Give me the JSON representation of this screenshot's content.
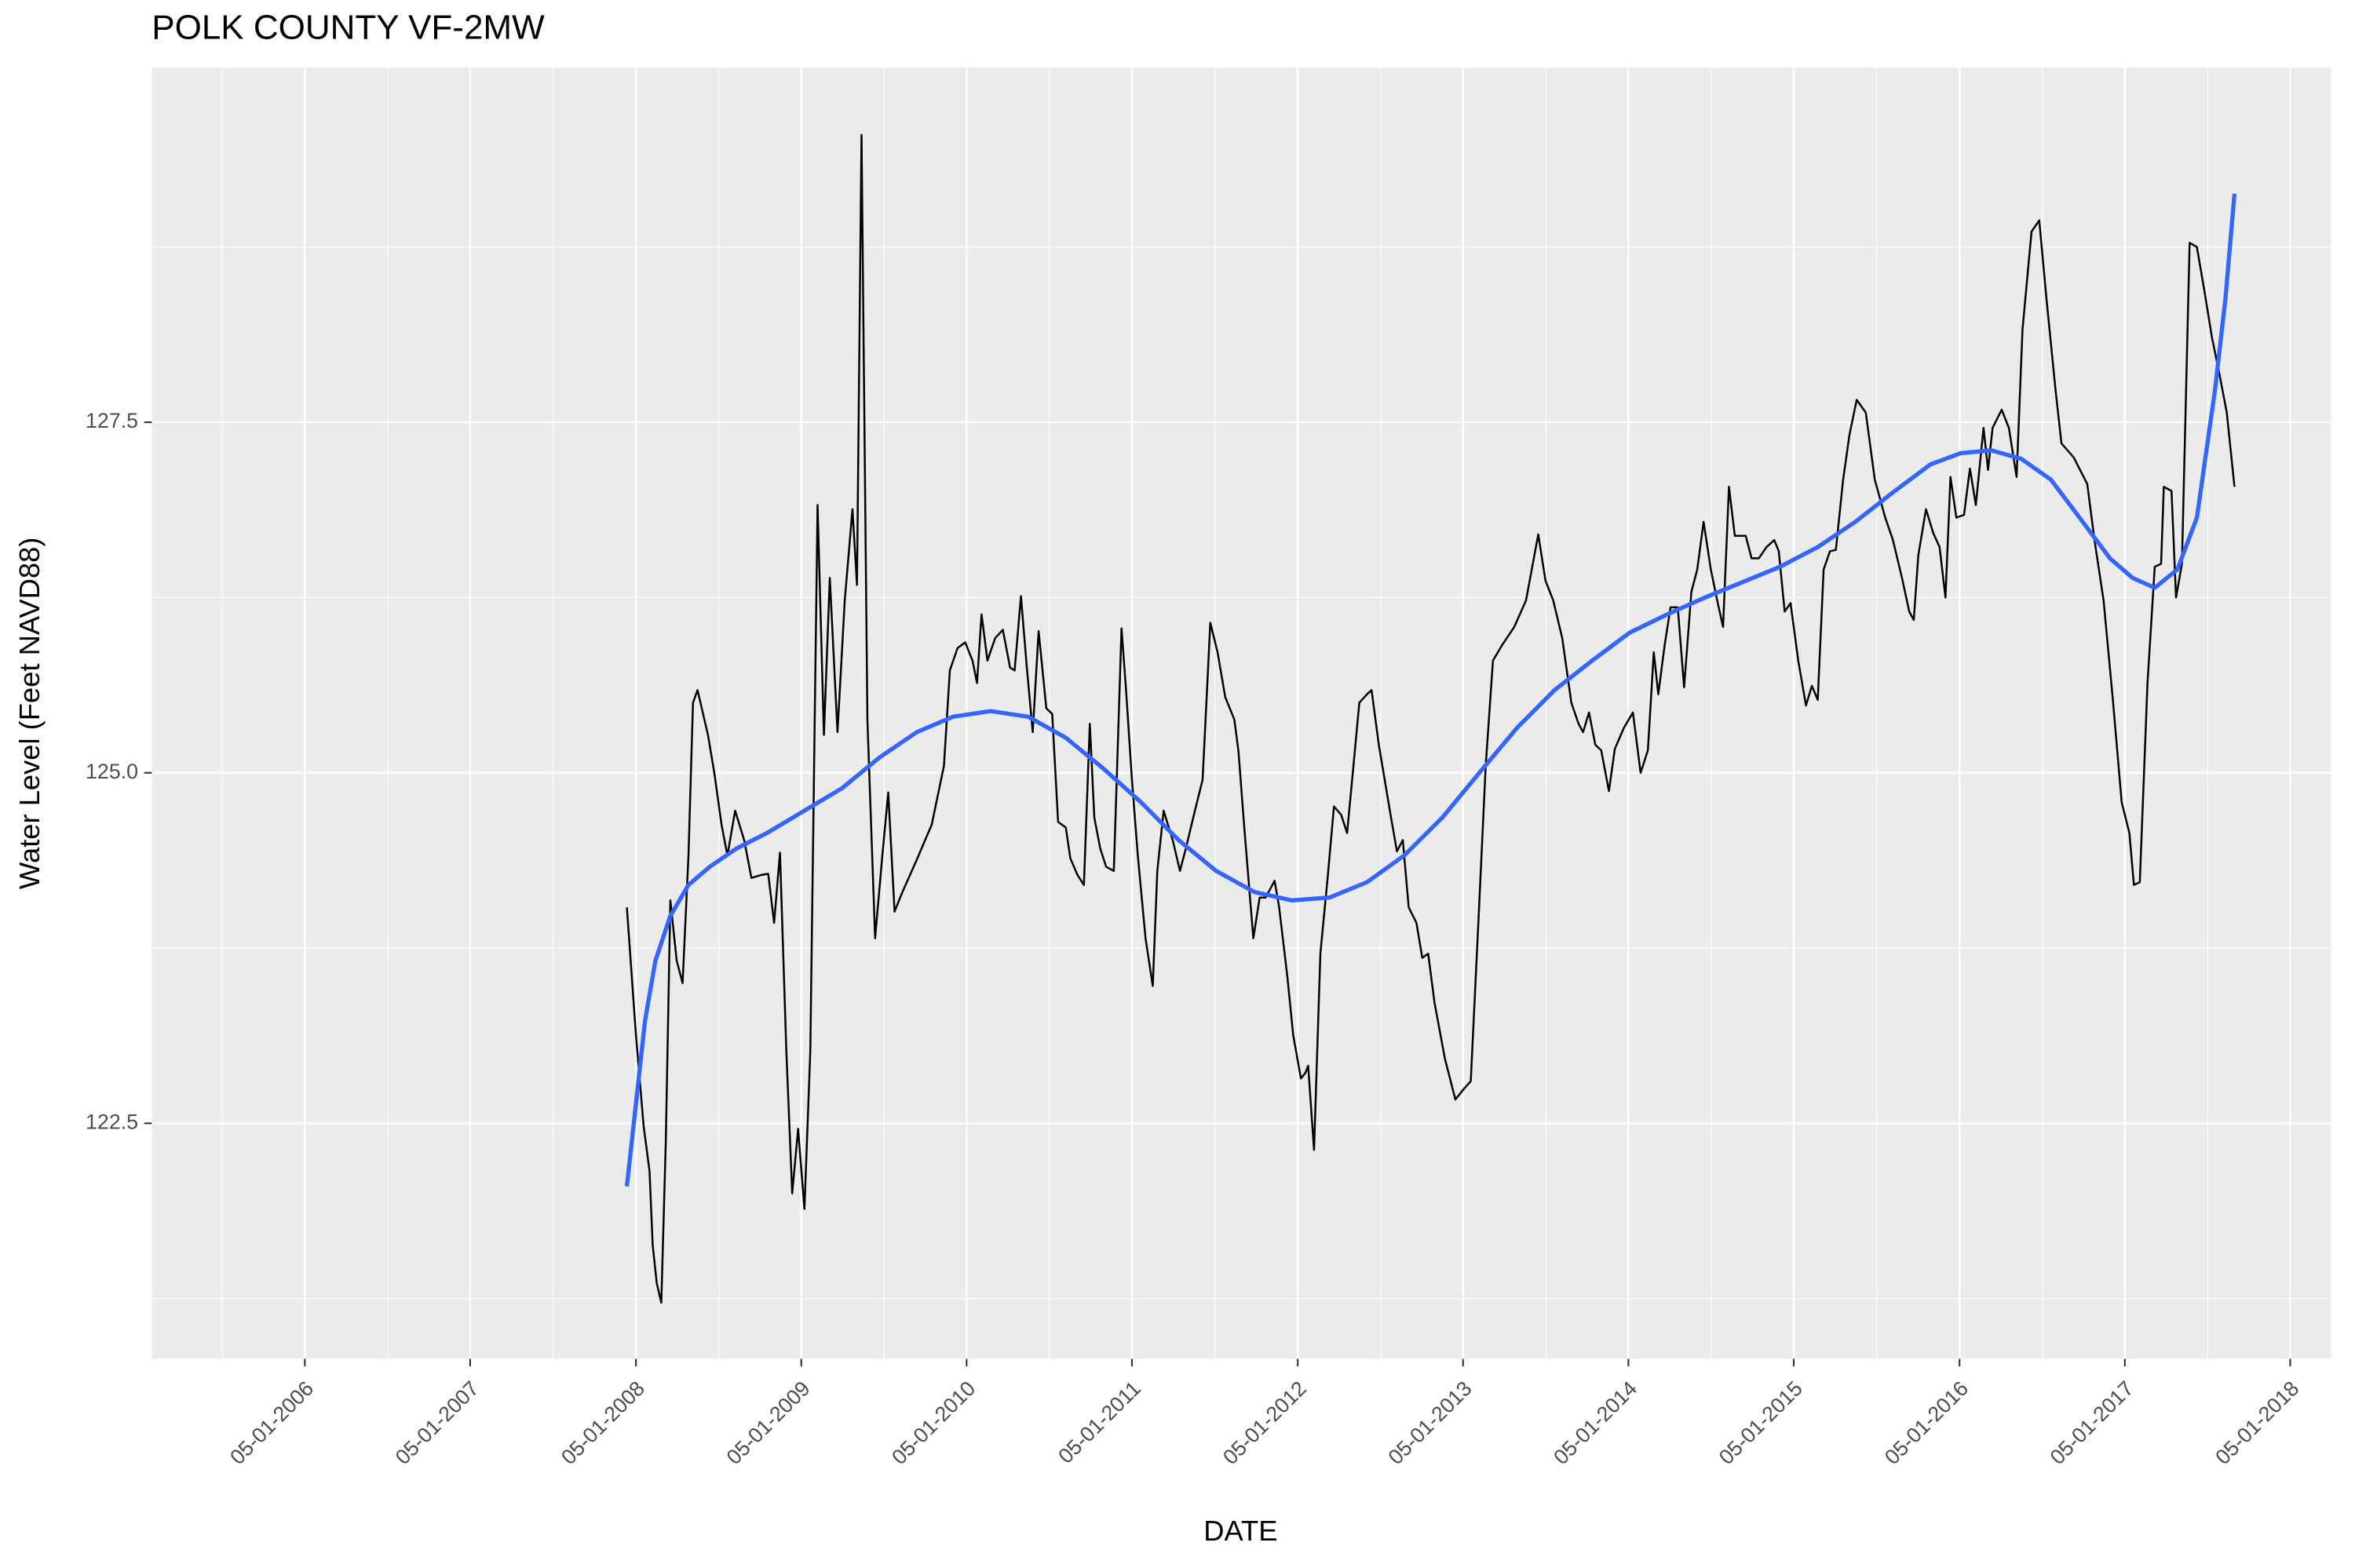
{
  "chart_data": {
    "type": "line",
    "title": "POLK COUNTY VF-2MW",
    "x_label": "DATE",
    "y_label": "Water Level (Feet NAVD88)",
    "color": "#000000",
    "x": [
      "2008-04-11",
      "2008-05-01",
      "2008-05-18",
      "2008-05-31",
      "2008-06-07",
      "2008-06-16",
      "2008-06-26",
      "2008-07-06",
      "2008-07-16",
      "2008-07-30",
      "2008-08-12",
      "2008-08-25",
      "2008-09-04",
      "2008-09-14",
      "2008-10-07",
      "2008-10-21",
      "2008-11-06",
      "2008-11-19",
      "2008-12-06",
      "2008-12-26",
      "2009-01-11",
      "2009-01-31",
      "2009-02-17",
      "2009-03-02",
      "2009-03-15",
      "2009-03-29",
      "2009-04-11",
      "2009-04-24",
      "2009-05-08",
      "2009-05-21",
      "2009-06-06",
      "2009-06-20",
      "2009-07-03",
      "2009-07-20",
      "2009-08-05",
      "2009-08-22",
      "2009-09-01",
      "2009-09-11",
      "2009-09-24",
      "2009-10-11",
      "2009-10-27",
      "2009-11-09",
      "2009-11-23",
      "2009-12-09",
      "2010-01-11",
      "2010-02-13",
      "2010-03-12",
      "2010-03-25",
      "2010-04-11",
      "2010-04-28",
      "2010-05-14",
      "2010-05-24",
      "2010-06-03",
      "2010-06-16",
      "2010-07-03",
      "2010-07-20",
      "2010-08-05",
      "2010-08-15",
      "2010-08-29",
      "2010-09-11",
      "2010-09-24",
      "2010-10-07",
      "2010-10-24",
      "2010-11-06",
      "2010-11-19",
      "2010-12-06",
      "2010-12-16",
      "2011-01-01",
      "2011-01-15",
      "2011-01-28",
      "2011-02-07",
      "2011-02-20",
      "2011-03-05",
      "2011-03-22",
      "2011-04-08",
      "2011-04-18",
      "2011-05-01",
      "2011-05-14",
      "2011-05-31",
      "2011-06-16",
      "2011-06-26",
      "2011-07-10",
      "2011-07-30",
      "2011-08-15",
      "2011-08-28",
      "2011-09-17",
      "2011-10-04",
      "2011-10-21",
      "2011-11-06",
      "2011-11-23",
      "2011-12-13",
      "2011-12-22",
      "2012-01-05",
      "2012-01-24",
      "2012-02-07",
      "2012-02-20",
      "2012-03-11",
      "2012-03-21",
      "2012-04-08",
      "2012-04-21",
      "2012-05-08",
      "2012-05-18",
      "2012-05-24",
      "2012-06-06",
      "2012-06-20",
      "2012-07-06",
      "2012-07-20",
      "2012-08-05",
      "2012-08-18",
      "2012-09-01",
      "2012-09-14",
      "2012-10-01",
      "2012-10-11",
      "2012-10-27",
      "2012-11-09",
      "2012-11-23",
      "2012-12-06",
      "2012-12-19",
      "2013-01-01",
      "2013-01-18",
      "2013-01-31",
      "2013-02-13",
      "2013-02-27",
      "2013-03-22",
      "2013-04-14",
      "2013-05-04",
      "2013-05-18",
      "2013-06-03",
      "2013-06-20",
      "2013-07-06",
      "2013-07-26",
      "2013-08-22",
      "2013-09-17",
      "2013-10-14",
      "2013-10-30",
      "2013-11-16",
      "2013-12-06",
      "2013-12-26",
      "2014-01-11",
      "2014-01-21",
      "2014-02-03",
      "2014-02-17",
      "2014-03-02",
      "2014-03-19",
      "2014-04-01",
      "2014-04-21",
      "2014-05-11",
      "2014-05-28",
      "2014-06-13",
      "2014-06-26",
      "2014-07-06",
      "2014-07-20",
      "2014-08-02",
      "2014-08-18",
      "2014-09-01",
      "2014-09-17",
      "2014-09-30",
      "2014-10-14",
      "2014-10-30",
      "2014-11-13",
      "2014-11-26",
      "2014-12-09",
      "2014-12-22",
      "2015-01-15",
      "2015-01-28",
      "2015-02-13",
      "2015-03-02",
      "2015-03-19",
      "2015-03-29",
      "2015-04-11",
      "2015-04-24",
      "2015-05-11",
      "2015-05-28",
      "2015-06-10",
      "2015-06-23",
      "2015-07-06",
      "2015-07-20",
      "2015-08-02",
      "2015-08-18",
      "2015-09-01",
      "2015-09-17",
      "2015-10-07",
      "2015-10-27",
      "2015-11-19",
      "2015-12-06",
      "2015-12-26",
      "2016-01-11",
      "2016-01-21",
      "2016-01-31",
      "2016-02-17",
      "2016-03-04",
      "2016-03-18",
      "2016-03-31",
      "2016-04-11",
      "2016-04-24",
      "2016-05-11",
      "2016-05-24",
      "2016-06-06",
      "2016-06-23",
      "2016-07-03",
      "2016-07-13",
      "2016-08-02",
      "2016-08-18",
      "2016-09-04",
      "2016-09-17",
      "2016-10-07",
      "2016-10-24",
      "2016-11-09",
      "2016-11-29",
      "2016-12-12",
      "2017-01-08",
      "2017-02-07",
      "2017-02-23",
      "2017-03-15",
      "2017-04-04",
      "2017-04-24",
      "2017-05-11",
      "2017-05-21",
      "2017-06-03",
      "2017-06-20",
      "2017-07-06",
      "2017-07-20",
      "2017-07-26",
      "2017-08-12",
      "2017-08-22",
      "2017-09-04",
      "2017-09-21",
      "2017-10-07",
      "2017-10-24",
      "2017-11-09",
      "2017-11-26",
      "2017-12-12",
      "2017-12-29"
    ],
    "values": [
      124.04,
      123.13,
      122.48,
      122.16,
      121.63,
      121.36,
      121.22,
      122.38,
      124.09,
      123.66,
      123.5,
      124.41,
      125.5,
      125.59,
      125.27,
      125.0,
      124.63,
      124.41,
      124.73,
      124.52,
      124.25,
      124.27,
      124.28,
      123.93,
      124.43,
      123.02,
      122.0,
      122.46,
      121.89,
      123.02,
      126.91,
      125.27,
      126.39,
      125.29,
      126.23,
      126.88,
      126.34,
      129.55,
      125.38,
      123.82,
      124.41,
      124.86,
      124.01,
      124.14,
      124.38,
      124.63,
      125.05,
      125.73,
      125.89,
      125.93,
      125.8,
      125.64,
      126.13,
      125.8,
      125.96,
      126.02,
      125.75,
      125.73,
      126.26,
      125.75,
      125.29,
      126.01,
      125.46,
      125.42,
      124.65,
      124.61,
      124.39,
      124.27,
      124.2,
      125.35,
      124.68,
      124.46,
      124.33,
      124.3,
      126.03,
      125.59,
      124.95,
      124.41,
      123.82,
      123.48,
      124.3,
      124.73,
      124.52,
      124.3,
      124.46,
      124.73,
      124.95,
      126.07,
      125.86,
      125.54,
      125.38,
      125.16,
      124.57,
      123.82,
      124.11,
      124.11,
      124.23,
      124.04,
      123.55,
      123.13,
      122.82,
      122.86,
      122.91,
      122.31,
      123.71,
      124.25,
      124.76,
      124.7,
      124.57,
      125.05,
      125.5,
      125.56,
      125.59,
      125.2,
      124.95,
      124.68,
      124.44,
      124.52,
      124.04,
      123.93,
      123.68,
      123.71,
      123.36,
      122.96,
      122.67,
      122.75,
      122.8,
      123.88,
      125.05,
      125.8,
      125.91,
      126.04,
      126.23,
      126.7,
      126.37,
      126.23,
      125.96,
      125.5,
      125.35,
      125.29,
      125.43,
      125.2,
      125.16,
      124.87,
      125.17,
      125.32,
      125.43,
      125.0,
      125.16,
      125.86,
      125.56,
      125.91,
      126.18,
      126.18,
      125.61,
      126.29,
      126.45,
      126.79,
      126.45,
      126.23,
      126.04,
      127.04,
      126.69,
      126.69,
      126.53,
      126.53,
      126.61,
      126.66,
      126.58,
      126.15,
      126.21,
      125.8,
      125.48,
      125.62,
      125.52,
      126.45,
      126.58,
      126.59,
      127.09,
      127.41,
      127.66,
      127.57,
      127.09,
      126.82,
      126.66,
      126.39,
      126.15,
      126.09,
      126.55,
      126.88,
      126.71,
      126.61,
      126.25,
      127.11,
      126.82,
      126.84,
      127.17,
      126.91,
      127.46,
      127.16,
      127.46,
      127.59,
      127.46,
      127.11,
      128.16,
      128.86,
      128.94,
      128.38,
      127.73,
      127.35,
      127.25,
      127.06,
      126.66,
      126.23,
      125.54,
      124.79,
      124.57,
      124.2,
      124.22,
      125.64,
      126.47,
      126.49,
      127.04,
      127.01,
      126.25,
      126.49,
      128.78,
      128.75,
      128.43,
      128.11,
      127.84,
      127.57,
      127.04
    ],
    "trend": {
      "color": "#3366ff",
      "x": [
        "2008-04-11",
        "2008-05-01",
        "2008-05-21",
        "2008-06-13",
        "2008-07-16",
        "2008-08-25",
        "2008-10-11",
        "2008-12-09",
        "2009-02-14",
        "2009-05-08",
        "2009-07-30",
        "2009-10-21",
        "2010-01-11",
        "2010-04-01",
        "2010-06-23",
        "2010-09-14",
        "2010-12-06",
        "2011-02-27",
        "2011-05-21",
        "2011-08-12",
        "2011-11-03",
        "2012-01-26",
        "2012-04-18",
        "2012-07-10",
        "2012-10-01",
        "2012-12-22",
        "2013-03-16",
        "2013-06-06",
        "2013-08-28",
        "2013-11-19",
        "2014-02-10",
        "2014-05-04",
        "2014-07-26",
        "2014-10-17",
        "2015-01-08",
        "2015-04-01",
        "2015-06-23",
        "2015-09-14",
        "2015-12-06",
        "2016-02-27",
        "2016-05-04",
        "2016-07-10",
        "2016-09-14",
        "2016-11-19",
        "2017-01-21",
        "2017-03-29",
        "2017-05-18",
        "2017-07-06",
        "2017-08-25",
        "2017-10-07",
        "2017-11-16",
        "2017-12-09",
        "2017-12-29"
      ],
      "values": [
        122.05,
        122.64,
        123.23,
        123.66,
        123.98,
        124.2,
        124.33,
        124.46,
        124.57,
        124.73,
        124.89,
        125.11,
        125.29,
        125.4,
        125.44,
        125.4,
        125.25,
        125.03,
        124.79,
        124.52,
        124.3,
        124.15,
        124.09,
        124.11,
        124.22,
        124.41,
        124.68,
        125.0,
        125.32,
        125.59,
        125.8,
        126.0,
        126.13,
        126.25,
        126.36,
        126.47,
        126.61,
        126.79,
        127.0,
        127.2,
        127.28,
        127.3,
        127.24,
        127.09,
        126.82,
        126.53,
        126.39,
        126.32,
        126.45,
        126.82,
        127.73,
        128.38,
        129.13
      ]
    },
    "xlim": [
      "2005-05-28",
      "2018-07-30"
    ],
    "xticks": [
      {
        "value": "2006-05-01",
        "label": "05-01-2006"
      },
      {
        "value": "2007-05-01",
        "label": "05-01-2007"
      },
      {
        "value": "2008-05-01",
        "label": "05-01-2008"
      },
      {
        "value": "2009-05-01",
        "label": "05-01-2009"
      },
      {
        "value": "2010-05-01",
        "label": "05-01-2010"
      },
      {
        "value": "2011-05-01",
        "label": "05-01-2011"
      },
      {
        "value": "2012-05-01",
        "label": "05-01-2012"
      },
      {
        "value": "2013-05-01",
        "label": "05-01-2013"
      },
      {
        "value": "2014-05-01",
        "label": "05-01-2014"
      },
      {
        "value": "2015-05-01",
        "label": "05-01-2015"
      },
      {
        "value": "2016-05-01",
        "label": "05-01-2016"
      },
      {
        "value": "2017-05-01",
        "label": "05-01-2017"
      },
      {
        "value": "2018-05-01",
        "label": "05-01-2018"
      }
    ],
    "x_minor_grid": [
      "2005-10-31",
      "2006-10-31",
      "2007-10-31",
      "2008-10-31",
      "2009-10-31",
      "2010-10-31",
      "2011-10-31",
      "2012-10-31",
      "2013-10-31",
      "2014-10-31",
      "2015-10-31",
      "2016-10-31",
      "2017-10-31"
    ],
    "ylim": [
      120.82,
      130.03
    ],
    "yticks": [
      122.5,
      {
        "value": 125,
        "label": "125.0"
      },
      127.5
    ],
    "y_minor_grid": [
      121.25,
      123.75,
      126.25,
      128.75
    ],
    "grid": true
  }
}
